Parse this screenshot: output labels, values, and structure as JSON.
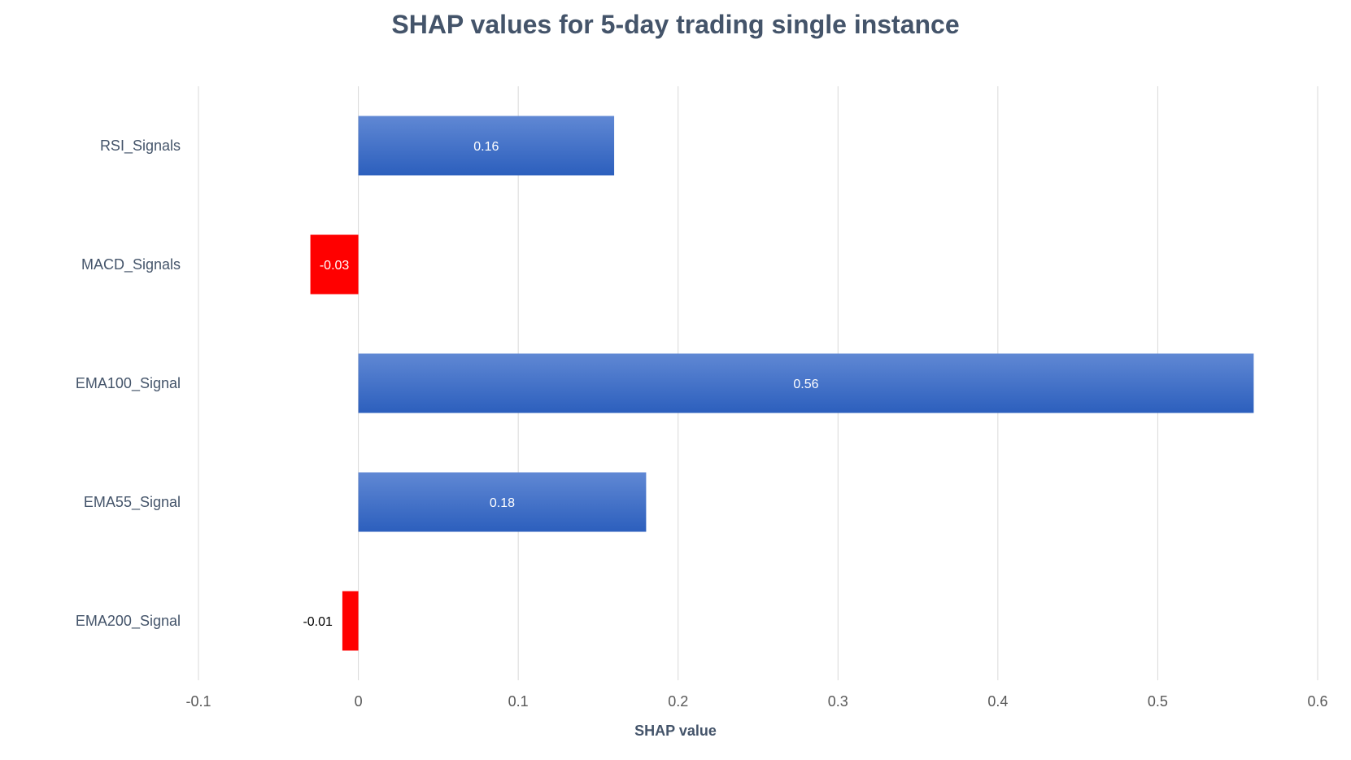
{
  "chart_data": {
    "type": "bar",
    "orientation": "horizontal",
    "title": "SHAP values for 5-day trading single instance",
    "xlabel": "SHAP value",
    "ylabel": "",
    "xlim": [
      -0.1,
      0.6
    ],
    "xticks": [
      -0.1,
      0,
      0.1,
      0.2,
      0.3,
      0.4,
      0.5,
      0.6
    ],
    "xtick_labels": [
      "-0.1",
      "0",
      "0.1",
      "0.2",
      "0.3",
      "0.4",
      "0.5",
      "0.6"
    ],
    "grid": true,
    "categories": [
      "RSI_Signals",
      "MACD_Signals",
      "EMA100_Signal",
      "EMA55_Signal",
      "EMA200_Signal"
    ],
    "values": [
      0.16,
      -0.03,
      0.56,
      0.18,
      -0.01
    ],
    "value_labels": [
      "0.16",
      "-0.03",
      "0.56",
      "0.18",
      "-0.01"
    ],
    "colors": {
      "positive": "#4472c4",
      "positive_light": "#5b87d6",
      "positive_dark": "#2f5fb8",
      "negative": "#ff0000",
      "grid": "#d9d9d9",
      "text": "#44546a",
      "tick_text": "#595959"
    }
  }
}
